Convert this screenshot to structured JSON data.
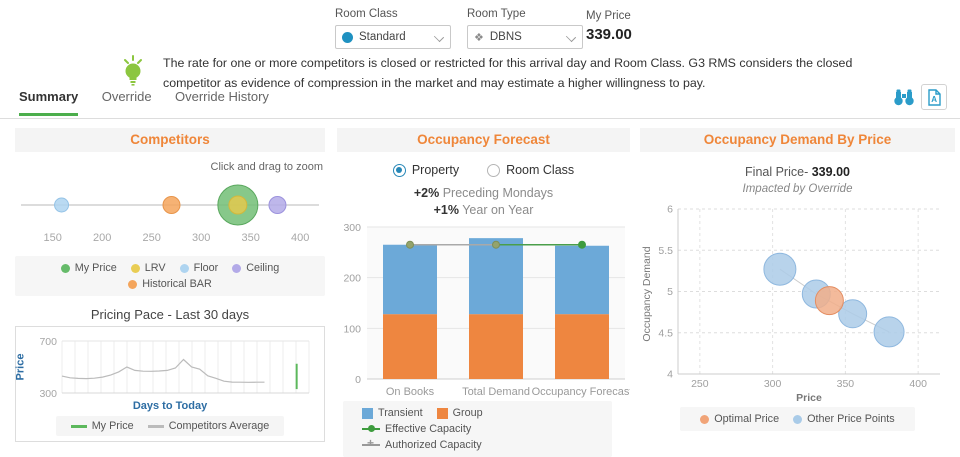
{
  "top": {
    "room_class_label": "Room Class",
    "room_class_value": "Standard",
    "room_type_label": "Room Type",
    "room_type_value": "DBNS",
    "my_price_label": "My Price",
    "my_price_value": "339.00"
  },
  "notice": {
    "text": "The rate for one or more competitors is closed or restricted for this arrival day and Room Class. G3 RMS considers the closed competitor as evidence of compression in the market and may estimate a higher willingness to pay."
  },
  "tabs": [
    {
      "label": "Summary",
      "active": true
    },
    {
      "label": "Override",
      "active": false
    },
    {
      "label": "Override History",
      "active": false
    }
  ],
  "panels": {
    "competitors": {
      "title": "Competitors"
    },
    "forecast": {
      "title": "Occupancy Forecast",
      "radios": [
        {
          "label": "Property",
          "selected": true
        },
        {
          "label": "Room Class",
          "selected": false
        }
      ],
      "stats": [
        {
          "value": "+2%",
          "label": "Preceding Mondays"
        },
        {
          "value": "+1%",
          "label": "Year on Year"
        }
      ]
    },
    "demand": {
      "title": "Occupancy Demand By Price"
    }
  },
  "chart_data": [
    {
      "id": "competitor-bubbles",
      "type": "scatter",
      "annotation": "Click and drag to zoom",
      "xlim": [
        112,
        425
      ],
      "x_ticks": [
        150,
        200,
        250,
        300,
        350,
        400
      ],
      "points": [
        {
          "name": "Floor",
          "x": 159,
          "r": 7,
          "fill": "#AED4F0",
          "stroke": "#93C2E6"
        },
        {
          "name": "Historical BAR",
          "x": 270,
          "r": 8.5,
          "fill": "#F4A55C",
          "stroke": "#E8954B"
        },
        {
          "name": "My Price",
          "x": 337,
          "r": 20,
          "fill": "#72BE75",
          "stroke": "#5AA85E"
        },
        {
          "name": "LRV",
          "x": 337,
          "r": 9,
          "fill": "#E3C94E",
          "stroke": "#D2B83C"
        },
        {
          "name": "Ceiling",
          "x": 377,
          "r": 8.5,
          "fill": "#B3AAE8",
          "stroke": "#9C92DD"
        }
      ],
      "legend": [
        {
          "label": "My Price",
          "swatch": "dot",
          "color": "#66BB6A"
        },
        {
          "label": "LRV",
          "swatch": "dot",
          "color": "#E9CD54"
        },
        {
          "label": "Floor",
          "swatch": "dot",
          "color": "#AED4F0"
        },
        {
          "label": "Ceiling",
          "swatch": "dot",
          "color": "#B3AAE8"
        },
        {
          "label": "Historical BAR",
          "swatch": "dot",
          "color": "#F4A55C"
        }
      ]
    },
    {
      "id": "pricing-pace",
      "type": "line",
      "title": "Pricing Pace - Last 30 days",
      "xlabel": "Days to Today",
      "ylabel": "Price",
      "ylim": [
        300,
        700
      ],
      "y_ticks": [
        700,
        300
      ],
      "series": [
        {
          "name": "Competitors Average",
          "color": "#BBBBBB",
          "values": [
            430,
            417,
            412,
            411,
            414,
            422,
            438,
            462,
            500,
            474,
            468,
            467,
            469,
            474,
            492,
            558,
            500,
            483,
            432,
            413,
            391,
            384,
            383,
            382,
            383,
            383
          ],
          "x_end_fraction": 0.82
        },
        {
          "name": "My Price",
          "color": "#5CB85C",
          "today_range": [
            330,
            525
          ],
          "x_fraction": 0.95
        }
      ],
      "legend": [
        {
          "label": "My Price",
          "swatch": "line",
          "color": "#5CB85C"
        },
        {
          "label": "Competitors Average",
          "swatch": "line",
          "color": "#BBBBBB"
        }
      ]
    },
    {
      "id": "occupancy-forecast",
      "type": "bar",
      "categories": [
        "On Books",
        "Total Demand",
        "Occupancy Forecast"
      ],
      "ylim": [
        0,
        300
      ],
      "y_ticks": [
        0,
        100,
        200,
        300
      ],
      "series": [
        {
          "name": "Group",
          "color": "#EE8640",
          "values": [
            128,
            128,
            128
          ]
        },
        {
          "name": "Transient",
          "color": "#6CA9D8",
          "values": [
            137,
            150,
            135
          ]
        }
      ],
      "capacity_lines": [
        {
          "name": "Authorized Capacity",
          "color": "#A9A9A9",
          "value": 265,
          "from": 0,
          "to": 1
        },
        {
          "name": "Effective Capacity",
          "color": "#4A9E4A",
          "value": 265,
          "from": 1,
          "to": 2
        }
      ],
      "legend": [
        {
          "label": "Transient",
          "swatch": "square",
          "color": "#6CA9D8"
        },
        {
          "label": "Group",
          "swatch": "square",
          "color": "#EE8640"
        },
        {
          "label": "Effective Capacity",
          "swatch": "line-dot",
          "color": "#3E9C3E"
        },
        {
          "label": "Authorized Capacity",
          "swatch": "line-cross",
          "color": "#999999"
        }
      ]
    },
    {
      "id": "demand-by-price",
      "type": "scatter",
      "final_price_label": "Final Price-",
      "final_price_value": "339.00",
      "subtitle": "Impacted by Override",
      "xlabel": "Price",
      "ylabel": "Occupancy Demand",
      "xlim": [
        235,
        415
      ],
      "ylim": [
        4,
        6
      ],
      "x_ticks": [
        250,
        300,
        350,
        400
      ],
      "y_ticks": [
        4,
        4.5,
        5,
        5.5,
        6
      ],
      "points": [
        {
          "name": "Other Price Points",
          "x": 305,
          "y": 5.27,
          "r": 16,
          "fill": "#ABCBE8",
          "stroke": "#8FB8DF"
        },
        {
          "name": "Other Price Points",
          "x": 330,
          "y": 4.97,
          "r": 14,
          "fill": "#ABCBE8",
          "stroke": "#8FB8DF"
        },
        {
          "name": "Other Price Points",
          "x": 355,
          "y": 4.73,
          "r": 14,
          "fill": "#ABCBE8",
          "stroke": "#8FB8DF"
        },
        {
          "name": "Other Price Points",
          "x": 380,
          "y": 4.51,
          "r": 15,
          "fill": "#ABCBE8",
          "stroke": "#8FB8DF"
        },
        {
          "name": "Optimal Price",
          "x": 339,
          "y": 4.89,
          "r": 14,
          "fill": "#F1AE89",
          "stroke": "#E48D61"
        }
      ],
      "trend_points": [
        [
          305,
          5.27
        ],
        [
          330,
          4.97
        ],
        [
          355,
          4.73
        ],
        [
          380,
          4.51
        ]
      ],
      "legend": [
        {
          "label": "Optimal Price",
          "swatch": "dot",
          "color": "#F1A478"
        },
        {
          "label": "Other Price Points",
          "swatch": "dot",
          "color": "#A9CBE8"
        }
      ]
    }
  ]
}
